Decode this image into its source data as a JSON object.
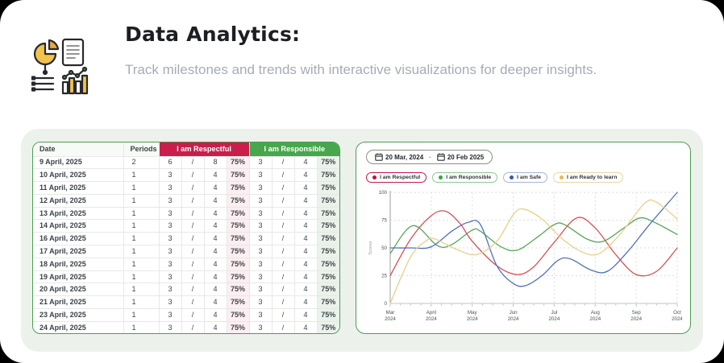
{
  "header": {
    "title": "Data Analytics:",
    "description": "Track milestones and trends with interactive visualizations for deeper insights.",
    "icon": "analytics-icon"
  },
  "table": {
    "columns": [
      "Date",
      "Periods"
    ],
    "groups": [
      {
        "label": "I am Respectful",
        "color": "#c91e4c"
      },
      {
        "label": "I am Responsible",
        "color": "#48a64d"
      }
    ],
    "rows": [
      {
        "date": "9 April, 2025",
        "periods": "2",
        "respectful": [
          "6",
          "/",
          "8",
          "75%"
        ],
        "responsible": [
          "3",
          "/",
          "4",
          "75%"
        ]
      },
      {
        "date": "10 April, 2025",
        "periods": "1",
        "respectful": [
          "3",
          "/",
          "4",
          "75%"
        ],
        "responsible": [
          "3",
          "/",
          "4",
          "75%"
        ]
      },
      {
        "date": "11 April, 2025",
        "periods": "1",
        "respectful": [
          "3",
          "/",
          "4",
          "75%"
        ],
        "responsible": [
          "3",
          "/",
          "4",
          "75%"
        ]
      },
      {
        "date": "12 April, 2025",
        "periods": "1",
        "respectful": [
          "3",
          "/",
          "4",
          "75%"
        ],
        "responsible": [
          "3",
          "/",
          "4",
          "75%"
        ]
      },
      {
        "date": "13 April, 2025",
        "periods": "1",
        "respectful": [
          "3",
          "/",
          "4",
          "75%"
        ],
        "responsible": [
          "3",
          "/",
          "4",
          "75%"
        ]
      },
      {
        "date": "14 April, 2025",
        "periods": "1",
        "respectful": [
          "3",
          "/",
          "4",
          "75%"
        ],
        "responsible": [
          "3",
          "/",
          "4",
          "75%"
        ]
      },
      {
        "date": "16 April, 2025",
        "periods": "1",
        "respectful": [
          "3",
          "/",
          "4",
          "75%"
        ],
        "responsible": [
          "3",
          "/",
          "4",
          "75%"
        ]
      },
      {
        "date": "17 April, 2025",
        "periods": "1",
        "respectful": [
          "3",
          "/",
          "4",
          "75%"
        ],
        "responsible": [
          "3",
          "/",
          "4",
          "75%"
        ]
      },
      {
        "date": "18 April, 2025",
        "periods": "1",
        "respectful": [
          "3",
          "/",
          "4",
          "75%"
        ],
        "responsible": [
          "3",
          "/",
          "4",
          "75%"
        ]
      },
      {
        "date": "19 April, 2025",
        "periods": "1",
        "respectful": [
          "3",
          "/",
          "4",
          "75%"
        ],
        "responsible": [
          "3",
          "/",
          "4",
          "75%"
        ]
      },
      {
        "date": "20 April, 2025",
        "periods": "1",
        "respectful": [
          "3",
          "/",
          "4",
          "75%"
        ],
        "responsible": [
          "3",
          "/",
          "4",
          "75%"
        ]
      },
      {
        "date": "21 April, 2025",
        "periods": "1",
        "respectful": [
          "3",
          "/",
          "4",
          "75%"
        ],
        "responsible": [
          "3",
          "/",
          "4",
          "75%"
        ]
      },
      {
        "date": "23 April, 2025",
        "periods": "1",
        "respectful": [
          "3",
          "/",
          "4",
          "75%"
        ],
        "responsible": [
          "3",
          "/",
          "4",
          "75%"
        ]
      },
      {
        "date": "24 April, 2025",
        "periods": "1",
        "respectful": [
          "3",
          "/",
          "4",
          "75%"
        ],
        "responsible": [
          "3",
          "/",
          "4",
          "75%"
        ]
      }
    ]
  },
  "chart_panel": {
    "date_range": {
      "start": "20 Mar, 2024",
      "separator": "·",
      "end": "20 Feb 2025"
    },
    "legend": [
      {
        "label": "I am Respectful",
        "border": "#c9184a",
        "dot": "#bc1341"
      },
      {
        "label": "I am Responsible",
        "border": "#8cc98f",
        "dot": "#3da244"
      },
      {
        "label": "I am Safe",
        "border": "#a3b6e0",
        "dot": "#3d53b0"
      },
      {
        "label": "I am Ready to learn",
        "border": "#e7d6a2",
        "dot": "#e2bd4e"
      }
    ]
  },
  "chart_data": {
    "type": "line",
    "title": "",
    "xlabel": "",
    "ylabel": "Scores",
    "ylim": [
      0,
      100
    ],
    "yticks": [
      0,
      25,
      50,
      75,
      100
    ],
    "grid": "dashed",
    "legend_position": "top",
    "x_categories": [
      {
        "label": "Mar",
        "year": "2024"
      },
      {
        "label": "April",
        "year": "2024"
      },
      {
        "label": "May",
        "year": "2024"
      },
      {
        "label": "Jun",
        "year": "2024"
      },
      {
        "label": "Jul",
        "year": "2024"
      },
      {
        "label": "Aug",
        "year": "2024"
      },
      {
        "label": "Sep",
        "year": "2024"
      },
      {
        "label": "Oct",
        "year": "2024"
      }
    ],
    "series": [
      {
        "name": "I am Respectful",
        "color": "#db4d52",
        "points": [
          [
            0,
            25
          ],
          [
            0.5,
            58
          ],
          [
            1,
            79
          ],
          [
            1.35,
            83
          ],
          [
            1.7,
            72
          ],
          [
            2,
            56
          ],
          [
            2.6,
            34
          ],
          [
            3.1,
            26
          ],
          [
            3.5,
            33
          ],
          [
            4,
            55
          ],
          [
            4.55,
            77
          ],
          [
            5,
            68
          ],
          [
            5.5,
            44
          ],
          [
            6,
            26
          ],
          [
            6.5,
            29
          ],
          [
            7,
            50
          ]
        ]
      },
      {
        "name": "I am Responsible",
        "color": "#56a65a",
        "points": [
          [
            0,
            45
          ],
          [
            0.55,
            70
          ],
          [
            1.15,
            52
          ],
          [
            1.5,
            53
          ],
          [
            2,
            66
          ],
          [
            2.2,
            65
          ],
          [
            2.7,
            51
          ],
          [
            3.1,
            48
          ],
          [
            3.6,
            60
          ],
          [
            4,
            71
          ],
          [
            4.25,
            71
          ],
          [
            4.8,
            58
          ],
          [
            5.2,
            56
          ],
          [
            5.7,
            68
          ],
          [
            6.1,
            77
          ],
          [
            6.5,
            72
          ],
          [
            7,
            62
          ]
        ]
      },
      {
        "name": "I am Safe",
        "color": "#5070bd",
        "points": [
          [
            0,
            50
          ],
          [
            0.5,
            50
          ],
          [
            1,
            51
          ],
          [
            1.5,
            65
          ],
          [
            1.9,
            73
          ],
          [
            2.2,
            71
          ],
          [
            2.6,
            34
          ],
          [
            3,
            18
          ],
          [
            3.3,
            16
          ],
          [
            3.7,
            25
          ],
          [
            4.1,
            39
          ],
          [
            4.4,
            40
          ],
          [
            4.9,
            30
          ],
          [
            5.3,
            29
          ],
          [
            5.8,
            47
          ],
          [
            6.3,
            70
          ],
          [
            7,
            100
          ]
        ]
      },
      {
        "name": "I am Ready to learn",
        "color": "#e9cf88",
        "points": [
          [
            0,
            0
          ],
          [
            0.5,
            42
          ],
          [
            0.9,
            57
          ],
          [
            1.1,
            58
          ],
          [
            1.6,
            49
          ],
          [
            2.1,
            44
          ],
          [
            2.6,
            56
          ],
          [
            3,
            80
          ],
          [
            3.25,
            85
          ],
          [
            3.7,
            76
          ],
          [
            4.2,
            58
          ],
          [
            4.7,
            46
          ],
          [
            5.1,
            45
          ],
          [
            5.6,
            62
          ],
          [
            6.2,
            90
          ],
          [
            6.5,
            91
          ],
          [
            7,
            76
          ]
        ]
      }
    ]
  }
}
